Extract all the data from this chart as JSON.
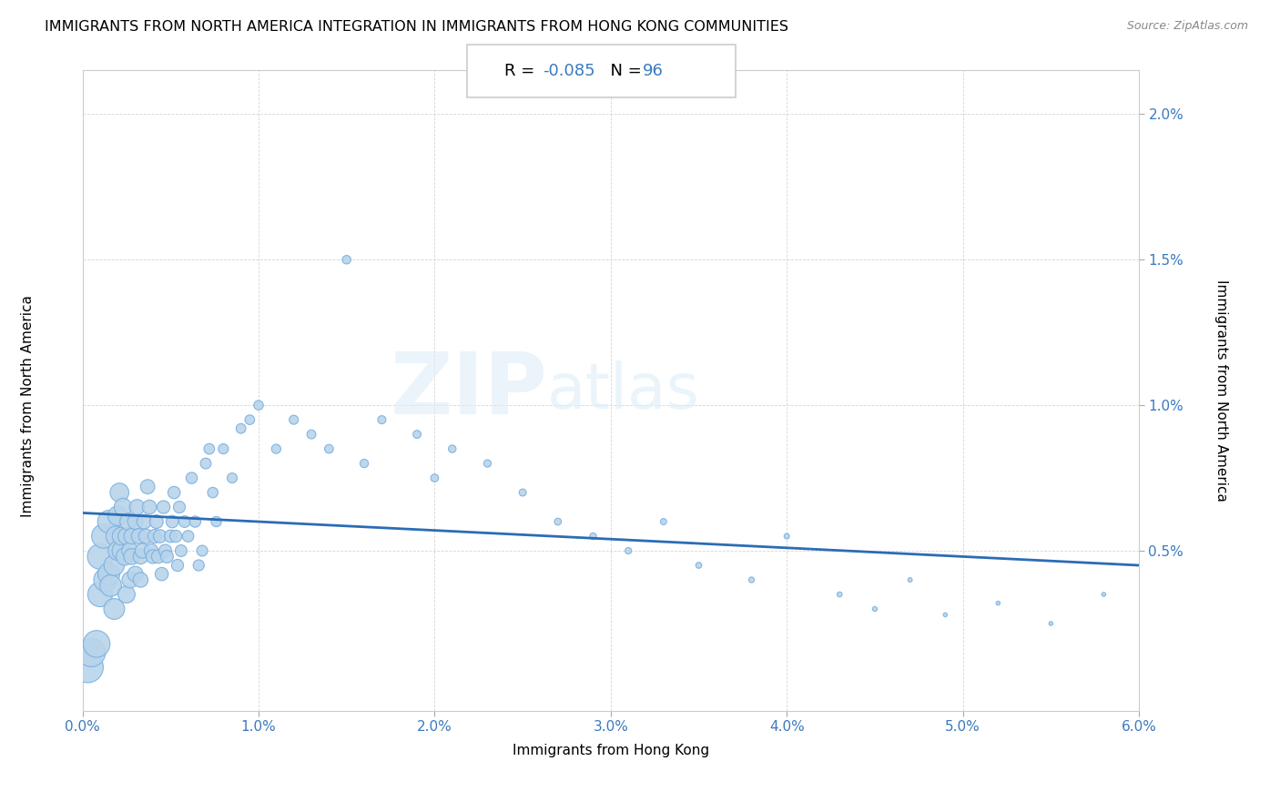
{
  "title": "IMMIGRANTS FROM NORTH AMERICA INTEGRATION IN IMMIGRANTS FROM HONG KONG COMMUNITIES",
  "source": "Source: ZipAtlas.com",
  "xlabel": "Immigrants from Hong Kong",
  "ylabel": "Immigrants from North America",
  "R": -0.085,
  "N": 96,
  "xlim": [
    0.0,
    0.06
  ],
  "ylim": [
    -0.0005,
    0.0215
  ],
  "xticks": [
    0.0,
    0.01,
    0.02,
    0.03,
    0.04,
    0.05,
    0.06
  ],
  "xticklabels": [
    "0.0%",
    "1.0%",
    "2.0%",
    "3.0%",
    "4.0%",
    "5.0%",
    "6.0%"
  ],
  "ytick_positions": [
    0.005,
    0.01,
    0.015,
    0.02
  ],
  "yticklabels": [
    "0.5%",
    "1.0%",
    "1.5%",
    "2.0%"
  ],
  "scatter_color": "#b8d4ea",
  "scatter_edge_color": "#7aafe0",
  "line_color": "#2b6cb5",
  "background_color": "#ffffff",
  "title_fontsize": 11.5,
  "axis_label_fontsize": 11,
  "tick_fontsize": 11,
  "scatter_x": [
    0.0003,
    0.0005,
    0.0008,
    0.001,
    0.001,
    0.0012,
    0.0013,
    0.0015,
    0.0015,
    0.0016,
    0.0018,
    0.0018,
    0.0019,
    0.002,
    0.002,
    0.0021,
    0.0022,
    0.0022,
    0.0023,
    0.0024,
    0.0025,
    0.0025,
    0.0026,
    0.0027,
    0.0027,
    0.0028,
    0.0028,
    0.003,
    0.003,
    0.0031,
    0.0032,
    0.0033,
    0.0033,
    0.0034,
    0.0035,
    0.0036,
    0.0037,
    0.0038,
    0.0039,
    0.004,
    0.0041,
    0.0042,
    0.0043,
    0.0044,
    0.0045,
    0.0046,
    0.0047,
    0.0048,
    0.005,
    0.0051,
    0.0052,
    0.0053,
    0.0054,
    0.0055,
    0.0056,
    0.0058,
    0.006,
    0.0062,
    0.0064,
    0.0066,
    0.0068,
    0.007,
    0.0072,
    0.0074,
    0.0076,
    0.008,
    0.0085,
    0.009,
    0.0095,
    0.01,
    0.011,
    0.012,
    0.013,
    0.014,
    0.015,
    0.016,
    0.017,
    0.019,
    0.02,
    0.021,
    0.023,
    0.025,
    0.027,
    0.029,
    0.031,
    0.033,
    0.035,
    0.038,
    0.04,
    0.043,
    0.045,
    0.047,
    0.049,
    0.052,
    0.055,
    0.058
  ],
  "scatter_y": [
    0.001,
    0.0015,
    0.0018,
    0.0048,
    0.0035,
    0.0055,
    0.004,
    0.006,
    0.0042,
    0.0038,
    0.003,
    0.0045,
    0.0055,
    0.0062,
    0.005,
    0.007,
    0.005,
    0.0055,
    0.0065,
    0.0048,
    0.0035,
    0.0055,
    0.006,
    0.005,
    0.004,
    0.0048,
    0.0055,
    0.0042,
    0.006,
    0.0065,
    0.0055,
    0.0048,
    0.004,
    0.005,
    0.006,
    0.0055,
    0.0072,
    0.0065,
    0.005,
    0.0048,
    0.0055,
    0.006,
    0.0048,
    0.0055,
    0.0042,
    0.0065,
    0.005,
    0.0048,
    0.0055,
    0.006,
    0.007,
    0.0055,
    0.0045,
    0.0065,
    0.005,
    0.006,
    0.0055,
    0.0075,
    0.006,
    0.0045,
    0.005,
    0.008,
    0.0085,
    0.007,
    0.006,
    0.0085,
    0.0075,
    0.0092,
    0.0095,
    0.01,
    0.0085,
    0.0095,
    0.009,
    0.0085,
    0.015,
    0.008,
    0.0095,
    0.009,
    0.0075,
    0.0085,
    0.008,
    0.007,
    0.006,
    0.0055,
    0.005,
    0.006,
    0.0045,
    0.004,
    0.0055,
    0.0035,
    0.003,
    0.004,
    0.0028,
    0.0032,
    0.0025,
    0.0035
  ],
  "scatter_sizes": [
    600,
    500,
    450,
    400,
    380,
    360,
    340,
    320,
    300,
    290,
    270,
    260,
    250,
    240,
    230,
    220,
    210,
    200,
    195,
    190,
    185,
    180,
    175,
    170,
    165,
    160,
    155,
    150,
    148,
    145,
    142,
    140,
    138,
    135,
    132,
    130,
    128,
    125,
    122,
    120,
    118,
    115,
    112,
    110,
    108,
    105,
    102,
    100,
    98,
    96,
    94,
    92,
    90,
    88,
    86,
    84,
    82,
    80,
    78,
    76,
    74,
    72,
    70,
    68,
    66,
    64,
    62,
    60,
    58,
    56,
    54,
    52,
    50,
    48,
    46,
    44,
    42,
    40,
    38,
    36,
    34,
    32,
    30,
    28,
    26,
    24,
    22,
    20,
    18,
    16,
    14,
    12,
    10,
    10,
    10,
    10
  ]
}
